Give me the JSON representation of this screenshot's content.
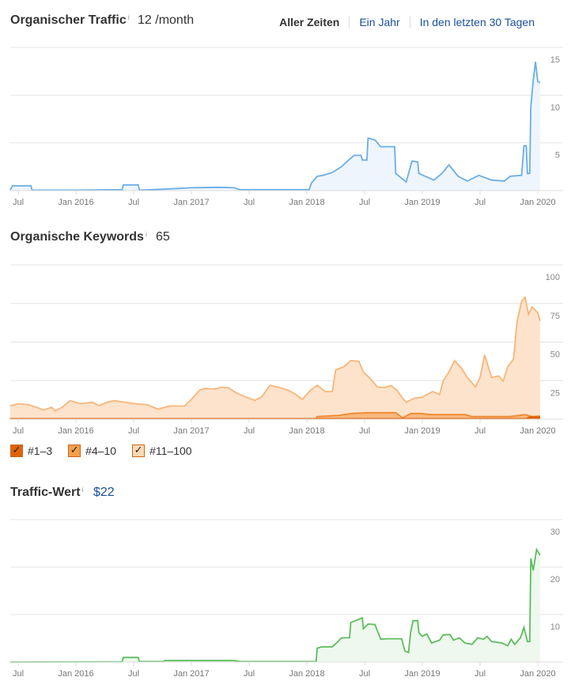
{
  "traffic": {
    "title": "Organischer Traffic",
    "info": "i",
    "metric": "12 /month"
  },
  "range": {
    "options": [
      "Aller Zeiten",
      "Ein Jahr",
      "In den letzten 30 Tagen"
    ],
    "selected": "Aller Zeiten"
  },
  "keywords": {
    "title": "Organische Keywords",
    "info": "i",
    "metric": "65"
  },
  "value": {
    "title": "Traffic-Wert",
    "info": "i",
    "metric": "$22"
  },
  "legend": [
    {
      "label": "#1–3",
      "color": "#e0620a"
    },
    {
      "label": "#4–10",
      "color": "#f5a04a"
    },
    {
      "label": "#11–100",
      "color": "#ffd9b5"
    }
  ],
  "chart_data": [
    {
      "type": "line",
      "name": "traffic",
      "ylim": [
        0,
        15
      ],
      "yticks": [
        "5",
        "10",
        "15"
      ],
      "ytickvals": [
        5,
        10,
        15
      ],
      "xticks": [
        "Jul",
        "Jan 2016",
        "Jul",
        "Jan 2017",
        "Jul",
        "Jan 2018",
        "Jul",
        "Jan 2019",
        "Jul",
        "Jan 2020"
      ],
      "xtickvals": [
        2015.5,
        2016,
        2016.5,
        2017,
        2017.5,
        2018,
        2018.5,
        2019,
        2019.5,
        2020
      ],
      "series": [
        {
          "name": "Traffic",
          "color": "#6aaee6",
          "fill": "#eef5fd",
          "points": [
            [
              2015.43,
              0.05
            ],
            [
              2015.45,
              0.5
            ],
            [
              2015.61,
              0.5
            ],
            [
              2015.62,
              0.05
            ],
            [
              2016.0,
              0.05
            ],
            [
              2016.4,
              0.1
            ],
            [
              2016.41,
              0.6
            ],
            [
              2016.54,
              0.6
            ],
            [
              2016.55,
              0.05
            ],
            [
              2016.76,
              0.15
            ],
            [
              2017.0,
              0.3
            ],
            [
              2017.23,
              0.35
            ],
            [
              2017.37,
              0.3
            ],
            [
              2017.42,
              0.1
            ],
            [
              2017.52,
              0.1
            ],
            [
              2017.9,
              0.1
            ],
            [
              2018.02,
              0.1
            ],
            [
              2018.04,
              0.8
            ],
            [
              2018.09,
              1.5
            ],
            [
              2018.14,
              1.6
            ],
            [
              2018.22,
              1.9
            ],
            [
              2018.3,
              2.5
            ],
            [
              2018.37,
              3.3
            ],
            [
              2018.41,
              3.7
            ],
            [
              2018.47,
              3.7
            ],
            [
              2018.48,
              3.2
            ],
            [
              2018.52,
              3.2
            ],
            [
              2018.53,
              5.5
            ],
            [
              2018.59,
              5.3
            ],
            [
              2018.64,
              4.6
            ],
            [
              2018.76,
              4.6
            ],
            [
              2018.77,
              1.8
            ],
            [
              2018.86,
              0.9
            ],
            [
              2018.91,
              3.1
            ],
            [
              2018.96,
              3.0
            ],
            [
              2018.97,
              1.8
            ],
            [
              2019.1,
              1.1
            ],
            [
              2019.17,
              1.8
            ],
            [
              2019.23,
              2.7
            ],
            [
              2019.31,
              1.5
            ],
            [
              2019.39,
              1.0
            ],
            [
              2019.49,
              1.6
            ],
            [
              2019.6,
              1.1
            ],
            [
              2019.71,
              1.0
            ],
            [
              2019.76,
              1.5
            ],
            [
              2019.86,
              1.6
            ],
            [
              2019.88,
              4.7
            ],
            [
              2019.9,
              4.7
            ],
            [
              2019.91,
              1.8
            ],
            [
              2019.93,
              1.8
            ],
            [
              2019.94,
              8.8
            ],
            [
              2019.96,
              11.5
            ],
            [
              2019.98,
              13.5
            ],
            [
              2020.0,
              11.4
            ],
            [
              2020.02,
              11.3
            ]
          ]
        }
      ]
    },
    {
      "type": "area",
      "name": "keywords",
      "ylim": [
        0,
        100
      ],
      "yticks": [
        "25",
        "50",
        "75",
        "100"
      ],
      "ytickvals": [
        25,
        50,
        75,
        100
      ],
      "xticks": [
        "Jul",
        "Jan 2016",
        "Jul",
        "Jan 2017",
        "Jul",
        "Jan 2018",
        "Jul",
        "Jan 2019",
        "Jul",
        "Jan 2020"
      ],
      "xtickvals": [
        2015.5,
        2016,
        2016.5,
        2017,
        2017.5,
        2018,
        2018.5,
        2019,
        2019.5,
        2020
      ],
      "series": [
        {
          "name": "#11–100",
          "color": "#f8b57a",
          "fill": "#fee3cc",
          "points": [
            [
              2015.43,
              8.5
            ],
            [
              2015.5,
              10
            ],
            [
              2015.59,
              9.4
            ],
            [
              2015.66,
              7.7
            ],
            [
              2015.72,
              6
            ],
            [
              2015.79,
              7.7
            ],
            [
              2015.82,
              5.4
            ],
            [
              2015.88,
              7.7
            ],
            [
              2015.95,
              12
            ],
            [
              2016.04,
              10
            ],
            [
              2016.14,
              11
            ],
            [
              2016.2,
              8.8
            ],
            [
              2016.27,
              11
            ],
            [
              2016.33,
              12
            ],
            [
              2016.43,
              11
            ],
            [
              2016.52,
              10
            ],
            [
              2016.62,
              9.4
            ],
            [
              2016.71,
              6.5
            ],
            [
              2016.81,
              8.5
            ],
            [
              2016.94,
              8.5
            ],
            [
              2017.0,
              12.8
            ],
            [
              2017.07,
              18.7
            ],
            [
              2017.12,
              20
            ],
            [
              2017.2,
              19.5
            ],
            [
              2017.26,
              20.7
            ],
            [
              2017.32,
              20.4
            ],
            [
              2017.39,
              17
            ],
            [
              2017.45,
              15
            ],
            [
              2017.55,
              12.2
            ],
            [
              2017.61,
              14.5
            ],
            [
              2017.68,
              22
            ],
            [
              2017.77,
              20.4
            ],
            [
              2017.84,
              18.7
            ],
            [
              2017.9,
              16.2
            ],
            [
              2017.96,
              12.8
            ],
            [
              2018.03,
              18.7
            ],
            [
              2018.09,
              22
            ],
            [
              2018.16,
              17.9
            ],
            [
              2018.22,
              17.9
            ],
            [
              2018.25,
              32
            ],
            [
              2018.32,
              34
            ],
            [
              2018.38,
              38
            ],
            [
              2018.45,
              37.5
            ],
            [
              2018.49,
              30.6
            ],
            [
              2018.54,
              27
            ],
            [
              2018.61,
              21
            ],
            [
              2018.67,
              20.5
            ],
            [
              2018.73,
              21.8
            ],
            [
              2018.78,
              18.7
            ],
            [
              2018.83,
              13.6
            ],
            [
              2018.86,
              11
            ],
            [
              2018.93,
              13.6
            ],
            [
              2018.99,
              14
            ],
            [
              2019.09,
              17.9
            ],
            [
              2019.15,
              16
            ],
            [
              2019.18,
              24.7
            ],
            [
              2019.23,
              30.6
            ],
            [
              2019.28,
              38
            ],
            [
              2019.34,
              33
            ],
            [
              2019.39,
              27
            ],
            [
              2019.46,
              21
            ],
            [
              2019.5,
              27
            ],
            [
              2019.54,
              41.7
            ],
            [
              2019.6,
              27
            ],
            [
              2019.66,
              28
            ],
            [
              2019.7,
              24.7
            ],
            [
              2019.74,
              34
            ],
            [
              2019.79,
              39
            ],
            [
              2019.82,
              63
            ],
            [
              2019.86,
              76.5
            ],
            [
              2019.89,
              79
            ],
            [
              2019.92,
              68
            ],
            [
              2019.95,
              72.8
            ],
            [
              2020.0,
              69
            ],
            [
              2020.02,
              63.8
            ]
          ]
        },
        {
          "name": "#4–10",
          "color": "#ee8a32",
          "fill": "#f8b880",
          "points": [
            [
              2015.43,
              0.3
            ],
            [
              2018.08,
              0.3
            ],
            [
              2018.09,
              1.7
            ],
            [
              2018.28,
              2.5
            ],
            [
              2018.39,
              3.7
            ],
            [
              2018.54,
              4.2
            ],
            [
              2018.77,
              4.2
            ],
            [
              2018.83,
              0.8
            ],
            [
              2018.9,
              3.7
            ],
            [
              2018.99,
              3.7
            ],
            [
              2019.07,
              3.0
            ],
            [
              2019.37,
              3.0
            ],
            [
              2019.43,
              1.7
            ],
            [
              2019.5,
              1.7
            ],
            [
              2019.76,
              1.7
            ],
            [
              2019.89,
              2.9
            ],
            [
              2019.95,
              1.7
            ],
            [
              2020.02,
              2.0
            ]
          ]
        },
        {
          "name": "#1–3",
          "color": "#e0620a",
          "fill": "#e0620a",
          "points": [
            [
              2015.43,
              0.3
            ],
            [
              2019.9,
              0.3
            ],
            [
              2019.93,
              1.5
            ],
            [
              2020.02,
              1.5
            ]
          ]
        }
      ]
    },
    {
      "type": "line",
      "name": "value",
      "ylim": [
        0,
        30
      ],
      "yticks": [
        "10",
        "20",
        "30"
      ],
      "ytickvals": [
        10,
        20,
        30
      ],
      "xticks": [
        "Jul",
        "Jan 2016",
        "Jul",
        "Jan 2017",
        "Jul",
        "Jan 2018",
        "Jul",
        "Jan 2019",
        "Jul",
        "Jan 2020"
      ],
      "xtickvals": [
        2015.5,
        2016,
        2016.5,
        2017,
        2017.5,
        2018,
        2018.5,
        2019,
        2019.5,
        2020
      ],
      "series": [
        {
          "name": "Traffic-Wert",
          "color": "#5cbd5c",
          "fill": "#eef8ee",
          "points": [
            [
              2015.43,
              0
            ],
            [
              2016.4,
              0.05
            ],
            [
              2016.41,
              0.95
            ],
            [
              2016.54,
              0.95
            ],
            [
              2016.55,
              0.1
            ],
            [
              2016.76,
              0.1
            ],
            [
              2016.77,
              0.3
            ],
            [
              2017.37,
              0.3
            ],
            [
              2017.42,
              0.1
            ],
            [
              2018.08,
              0.1
            ],
            [
              2018.09,
              2.9
            ],
            [
              2018.13,
              3.2
            ],
            [
              2018.22,
              3.2
            ],
            [
              2018.27,
              4.3
            ],
            [
              2018.3,
              5.1
            ],
            [
              2018.37,
              5.1
            ],
            [
              2018.38,
              8.3
            ],
            [
              2018.42,
              8.7
            ],
            [
              2018.48,
              9.3
            ],
            [
              2018.49,
              7
            ],
            [
              2018.53,
              8
            ],
            [
              2018.59,
              7.9
            ],
            [
              2018.64,
              4.8
            ],
            [
              2018.69,
              4.9
            ],
            [
              2018.82,
              4.9
            ],
            [
              2018.85,
              2.3
            ],
            [
              2018.88,
              2
            ],
            [
              2018.9,
              6.5
            ],
            [
              2018.92,
              8.7
            ],
            [
              2018.96,
              8.7
            ],
            [
              2018.97,
              6.2
            ],
            [
              2019.0,
              5.4
            ],
            [
              2019.04,
              5.9
            ],
            [
              2019.08,
              4
            ],
            [
              2019.15,
              4.6
            ],
            [
              2019.18,
              5.7
            ],
            [
              2019.24,
              5.8
            ],
            [
              2019.27,
              4.6
            ],
            [
              2019.32,
              5.1
            ],
            [
              2019.37,
              4
            ],
            [
              2019.43,
              3.7
            ],
            [
              2019.48,
              5.1
            ],
            [
              2019.53,
              4.8
            ],
            [
              2019.56,
              5.4
            ],
            [
              2019.6,
              4.3
            ],
            [
              2019.69,
              4
            ],
            [
              2019.74,
              3.4
            ],
            [
              2019.77,
              4.8
            ],
            [
              2019.8,
              3.7
            ],
            [
              2019.85,
              5.1
            ],
            [
              2019.88,
              7.3
            ],
            [
              2019.91,
              4.3
            ],
            [
              2019.93,
              4.3
            ],
            [
              2019.94,
              21.8
            ],
            [
              2019.96,
              19.3
            ],
            [
              2019.97,
              20.7
            ],
            [
              2019.99,
              23.7
            ],
            [
              2020.02,
              22.5
            ]
          ]
        }
      ]
    }
  ]
}
